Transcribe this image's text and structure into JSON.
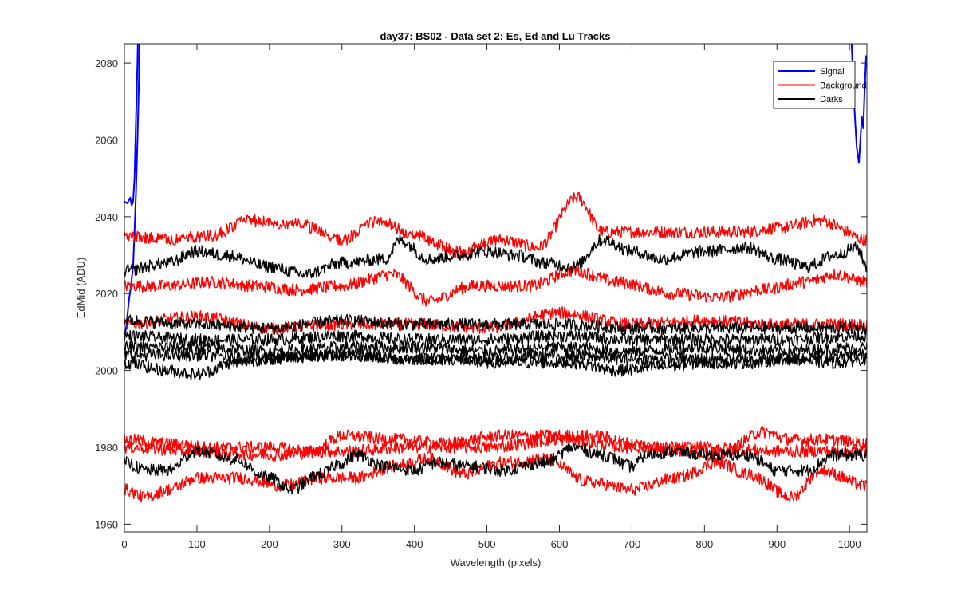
{
  "chart_data": {
    "type": "line",
    "title": "day37: BS02 - Data set 2: Es, Ed and Lu Tracks",
    "xlabel": "Wavelength (pixels)",
    "ylabel": "EdMid (ADU)",
    "xlim": [
      0,
      1024
    ],
    "ylim": [
      1958,
      2085
    ],
    "xticks": [
      0,
      100,
      200,
      300,
      400,
      500,
      600,
      700,
      800,
      900,
      1000
    ],
    "yticks": [
      1960,
      1980,
      2000,
      2020,
      2040,
      2060,
      2080
    ],
    "grid": false,
    "legend": {
      "position": "top-right",
      "entries": [
        {
          "name": "Signal",
          "color": "#0000ff"
        },
        {
          "name": "Background",
          "color": "#ff0000"
        },
        {
          "name": "Darks",
          "color": "#000000"
        }
      ]
    },
    "series": [
      {
        "group": "Signal",
        "color": "#0000ff",
        "points": [
          [
            0,
            2044
          ],
          [
            4,
            2043.5
          ],
          [
            8,
            2045
          ],
          [
            10,
            2043
          ],
          [
            12,
            2044
          ],
          [
            14,
            2050
          ],
          [
            16,
            2065
          ],
          [
            18,
            2080
          ],
          [
            19,
            2090
          ],
          [
            1000,
            2090
          ],
          [
            1003,
            2085
          ],
          [
            1005,
            2075
          ],
          [
            1008,
            2064
          ],
          [
            1010,
            2058
          ],
          [
            1013,
            2054
          ],
          [
            1015,
            2060
          ],
          [
            1017,
            2066
          ],
          [
            1019,
            2063
          ],
          [
            1021,
            2074
          ],
          [
            1023,
            2082
          ]
        ]
      },
      {
        "group": "Signal",
        "color": "#0000ff",
        "points": [
          [
            0,
            2008
          ],
          [
            3,
            2012
          ],
          [
            6,
            2018
          ],
          [
            9,
            2022
          ],
          [
            12,
            2027
          ],
          [
            14,
            2036
          ],
          [
            16,
            2046
          ],
          [
            18,
            2060
          ],
          [
            20,
            2075
          ],
          [
            21,
            2090
          ]
        ]
      },
      {
        "group": "Background",
        "color": "#ff0000",
        "points": [
          [
            0,
            2035
          ],
          [
            60,
            2034
          ],
          [
            120,
            2035
          ],
          [
            170,
            2039
          ],
          [
            240,
            2038
          ],
          [
            300,
            2034
          ],
          [
            350,
            2039
          ],
          [
            400,
            2035
          ],
          [
            460,
            2031
          ],
          [
            520,
            2034
          ],
          [
            570,
            2032
          ],
          [
            625,
            2045
          ],
          [
            660,
            2036
          ],
          [
            720,
            2036
          ],
          [
            800,
            2036
          ],
          [
            850,
            2036
          ],
          [
            900,
            2037
          ],
          [
            960,
            2039
          ],
          [
            1024,
            2034
          ]
        ]
      },
      {
        "group": "Background",
        "color": "#ff0000",
        "points": [
          [
            0,
            2022
          ],
          [
            60,
            2022
          ],
          [
            120,
            2023
          ],
          [
            180,
            2022
          ],
          [
            240,
            2021
          ],
          [
            300,
            2022
          ],
          [
            370,
            2025
          ],
          [
            420,
            2018
          ],
          [
            480,
            2022
          ],
          [
            560,
            2022
          ],
          [
            620,
            2026
          ],
          [
            680,
            2023
          ],
          [
            760,
            2020
          ],
          [
            820,
            2019
          ],
          [
            880,
            2021
          ],
          [
            940,
            2023
          ],
          [
            980,
            2025
          ],
          [
            1024,
            2023
          ]
        ]
      },
      {
        "group": "Background",
        "color": "#ff0000",
        "points": [
          [
            0,
            2012
          ],
          [
            100,
            2014
          ],
          [
            200,
            2011
          ],
          [
            300,
            2012
          ],
          [
            400,
            2012
          ],
          [
            500,
            2011
          ],
          [
            600,
            2015
          ],
          [
            700,
            2012
          ],
          [
            800,
            2013
          ],
          [
            900,
            2012
          ],
          [
            1024,
            2012
          ]
        ]
      },
      {
        "group": "Background",
        "color": "#ff0000",
        "points": [
          [
            0,
            1982
          ],
          [
            60,
            1981
          ],
          [
            120,
            1980
          ],
          [
            200,
            1980
          ],
          [
            260,
            1979
          ],
          [
            300,
            1983
          ],
          [
            380,
            1982
          ],
          [
            440,
            1981
          ],
          [
            520,
            1983
          ],
          [
            600,
            1983
          ],
          [
            650,
            1983
          ],
          [
            700,
            1981
          ],
          [
            760,
            1979
          ],
          [
            820,
            1978
          ],
          [
            880,
            1984
          ],
          [
            920,
            1982
          ],
          [
            980,
            1982
          ],
          [
            1024,
            1981
          ]
        ]
      },
      {
        "group": "Background",
        "color": "#ff0000",
        "points": [
          [
            0,
            1980
          ],
          [
            100,
            1979
          ],
          [
            200,
            1978
          ],
          [
            300,
            1979
          ],
          [
            400,
            1980
          ],
          [
            500,
            1980
          ],
          [
            600,
            1982
          ],
          [
            700,
            1980
          ],
          [
            800,
            1980
          ],
          [
            900,
            1979
          ],
          [
            1024,
            1979
          ]
        ]
      },
      {
        "group": "Background",
        "color": "#ff0000",
        "points": [
          [
            0,
            1969
          ],
          [
            30,
            1967
          ],
          [
            60,
            1969
          ],
          [
            100,
            1972
          ],
          [
            160,
            1972
          ],
          [
            220,
            1970
          ],
          [
            270,
            1972
          ],
          [
            320,
            1972
          ],
          [
            370,
            1975
          ],
          [
            420,
            1977
          ],
          [
            470,
            1973
          ],
          [
            520,
            1976
          ],
          [
            580,
            1977
          ],
          [
            640,
            1971
          ],
          [
            700,
            1969
          ],
          [
            760,
            1972
          ],
          [
            820,
            1976
          ],
          [
            860,
            1973
          ],
          [
            920,
            1967
          ],
          [
            960,
            1974
          ],
          [
            1024,
            1970
          ]
        ]
      },
      {
        "group": "Darks",
        "color": "#000000",
        "points": [
          [
            0,
            2026
          ],
          [
            60,
            2028
          ],
          [
            100,
            2031
          ],
          [
            140,
            2030
          ],
          [
            200,
            2027
          ],
          [
            250,
            2025
          ],
          [
            300,
            2028
          ],
          [
            360,
            2029
          ],
          [
            380,
            2034
          ],
          [
            420,
            2029
          ],
          [
            460,
            2030
          ],
          [
            500,
            2031
          ],
          [
            540,
            2030
          ],
          [
            580,
            2028
          ],
          [
            620,
            2027
          ],
          [
            660,
            2034
          ],
          [
            700,
            2031
          ],
          [
            740,
            2029
          ],
          [
            800,
            2031
          ],
          [
            860,
            2032
          ],
          [
            900,
            2029
          ],
          [
            940,
            2027
          ],
          [
            980,
            2030
          ],
          [
            1010,
            2032
          ],
          [
            1024,
            2027
          ]
        ]
      },
      {
        "group": "Darks",
        "color": "#000000",
        "points": [
          [
            0,
            2013
          ],
          [
            100,
            2012
          ],
          [
            200,
            2011
          ],
          [
            300,
            2013
          ],
          [
            400,
            2012
          ],
          [
            500,
            2012
          ],
          [
            600,
            2012
          ],
          [
            700,
            2011
          ],
          [
            800,
            2011
          ],
          [
            900,
            2011
          ],
          [
            1024,
            2011
          ]
        ]
      },
      {
        "group": "Darks",
        "color": "#000000",
        "points": [
          [
            0,
            2009
          ],
          [
            100,
            2008
          ],
          [
            200,
            2008
          ],
          [
            300,
            2009
          ],
          [
            400,
            2008
          ],
          [
            500,
            2008
          ],
          [
            600,
            2009
          ],
          [
            700,
            2008
          ],
          [
            800,
            2008
          ],
          [
            900,
            2008
          ],
          [
            1024,
            2009
          ]
        ]
      },
      {
        "group": "Darks",
        "color": "#000000",
        "points": [
          [
            0,
            2006
          ],
          [
            100,
            2006
          ],
          [
            200,
            2005
          ],
          [
            300,
            2006
          ],
          [
            400,
            2006
          ],
          [
            500,
            2005
          ],
          [
            600,
            2006
          ],
          [
            700,
            2005
          ],
          [
            800,
            2006
          ],
          [
            900,
            2005
          ],
          [
            1024,
            2006
          ]
        ]
      },
      {
        "group": "Darks",
        "color": "#000000",
        "points": [
          [
            0,
            2004
          ],
          [
            100,
            2004
          ],
          [
            200,
            2003
          ],
          [
            300,
            2004
          ],
          [
            400,
            2003
          ],
          [
            500,
            2003
          ],
          [
            600,
            2004
          ],
          [
            700,
            2003
          ],
          [
            800,
            2003
          ],
          [
            900,
            2003
          ],
          [
            1024,
            2004
          ]
        ]
      },
      {
        "group": "Darks",
        "color": "#000000",
        "points": [
          [
            0,
            2002
          ],
          [
            60,
            2000
          ],
          [
            100,
            1999
          ],
          [
            150,
            2002
          ],
          [
            200,
            2003
          ],
          [
            260,
            2004
          ],
          [
            320,
            2004
          ],
          [
            380,
            2003
          ],
          [
            440,
            2003
          ],
          [
            500,
            2002
          ],
          [
            560,
            2002
          ],
          [
            620,
            2002
          ],
          [
            680,
            2000
          ],
          [
            740,
            2001
          ],
          [
            800,
            2002
          ],
          [
            860,
            2002
          ],
          [
            920,
            2003
          ],
          [
            980,
            2002
          ],
          [
            1024,
            2003
          ]
        ]
      },
      {
        "group": "Darks",
        "color": "#000000",
        "points": [
          [
            0,
            1976
          ],
          [
            30,
            1974
          ],
          [
            60,
            1974
          ],
          [
            100,
            1979
          ],
          [
            150,
            1977
          ],
          [
            200,
            1972
          ],
          [
            230,
            1969
          ],
          [
            270,
            1973
          ],
          [
            300,
            1976
          ],
          [
            320,
            1978
          ],
          [
            360,
            1975
          ],
          [
            400,
            1974
          ],
          [
            430,
            1976
          ],
          [
            480,
            1975
          ],
          [
            520,
            1974
          ],
          [
            580,
            1976
          ],
          [
            620,
            1980
          ],
          [
            660,
            1978
          ],
          [
            700,
            1975
          ],
          [
            720,
            1978
          ],
          [
            760,
            1979
          ],
          [
            800,
            1978
          ],
          [
            860,
            1978
          ],
          [
            900,
            1974
          ],
          [
            940,
            1974
          ],
          [
            980,
            1978
          ],
          [
            1024,
            1978
          ]
        ]
      }
    ]
  }
}
